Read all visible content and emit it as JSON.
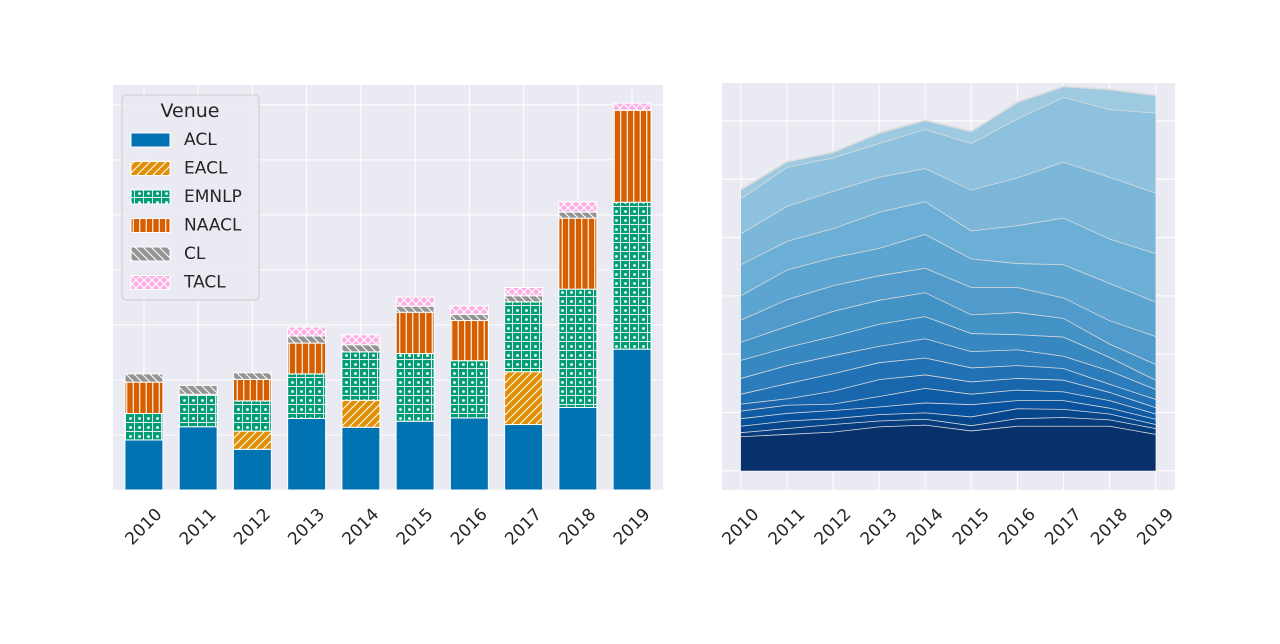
{
  "chart_data": [
    {
      "type": "bar",
      "stacked": true,
      "categories": [
        "2010",
        "2011",
        "2012",
        "2013",
        "2014",
        "2015",
        "2016",
        "2017",
        "2018",
        "2019"
      ],
      "series": [
        {
          "name": "ACL",
          "color": "#0173b2",
          "hatch": "none",
          "values": [
            91,
            115,
            74,
            130,
            114,
            125,
            131,
            119,
            150,
            256
          ]
        },
        {
          "name": "EACL",
          "color": "#de8f05",
          "hatch": "diagonal",
          "values": [
            0,
            0,
            33,
            0,
            49,
            0,
            0,
            96,
            0,
            0
          ]
        },
        {
          "name": "EMNLP",
          "color": "#029e73",
          "hatch": "dots",
          "values": [
            48,
            59,
            55,
            81,
            88,
            123,
            104,
            127,
            215,
            267
          ]
        },
        {
          "name": "NAACL",
          "color": "#d55e00",
          "hatch": "vertical",
          "values": [
            57,
            0,
            39,
            56,
            0,
            75,
            73,
            0,
            129,
            167
          ]
        },
        {
          "name": "CL",
          "color": "#949494",
          "hatch": "backslash",
          "values": [
            15,
            16,
            12,
            13,
            13,
            11,
            11,
            11,
            11,
            0
          ]
        },
        {
          "name": "TACL",
          "color": "#fbafe4",
          "hatch": "cross",
          "values": [
            0,
            0,
            0,
            16,
            18,
            17,
            16,
            15,
            19,
            13
          ]
        }
      ],
      "legend": {
        "title": "Venue",
        "position": "upper-left"
      },
      "ylim": [
        0,
        736
      ],
      "y_tick_labels_shown": false,
      "grid": true,
      "background": "#eaeaf2"
    },
    {
      "type": "area",
      "stacked": true,
      "categories": [
        "2010",
        "2011",
        "2012",
        "2013",
        "2014",
        "2015",
        "2016",
        "2017",
        "2018",
        "2019"
      ],
      "series": [
        {
          "values": [
            59,
            63,
            67,
            76,
            79,
            69,
            77,
            77,
            77,
            63
          ]
        },
        {
          "values": [
            7,
            10,
            13,
            10,
            10,
            9,
            13,
            15,
            11,
            10
          ]
        },
        {
          "values": [
            11,
            13,
            10,
            11,
            11,
            15,
            17,
            14,
            10,
            7
          ]
        },
        {
          "values": [
            13,
            13,
            14,
            13,
            17,
            21,
            14,
            15,
            10,
            9
          ]
        },
        {
          "values": [
            13,
            14,
            11,
            18,
            25,
            18,
            18,
            15,
            13,
            9
          ]
        },
        {
          "values": [
            12,
            11,
            22,
            29,
            23,
            21,
            20,
            20,
            14,
            11
          ]
        },
        {
          "values": [
            17,
            26,
            30,
            29,
            29,
            24,
            22,
            20,
            14,
            14
          ]
        },
        {
          "values": [
            27,
            31,
            31,
            28,
            33,
            28,
            27,
            21,
            23,
            17
          ]
        },
        {
          "values": [
            31,
            31,
            33,
            38,
            38,
            31,
            26,
            33,
            23,
            16
          ]
        },
        {
          "values": [
            31,
            36,
            43,
            41,
            41,
            32,
            38,
            32,
            23,
            27
          ]
        },
        {
          "values": [
            38,
            46,
            44,
            42,
            42,
            47,
            43,
            35,
            40,
            48
          ]
        },
        {
          "values": [
            42,
            51,
            48,
            47,
            58,
            49,
            41,
            57,
            64,
            59
          ]
        },
        {
          "values": [
            53,
            49,
            50,
            62,
            56,
            48,
            65,
            80,
            76,
            83
          ]
        },
        {
          "values": [
            53,
            60,
            64,
            60,
            57,
            70,
            82,
            96,
            106,
            104
          ]
        },
        {
          "values": [
            60,
            67,
            57,
            58,
            67,
            80,
            101,
            111,
            116,
            137
          ]
        },
        {
          "values": [
            15,
            9,
            9,
            17,
            15,
            20,
            28,
            18,
            34,
            30
          ]
        }
      ],
      "colormap": [
        "#08306b",
        "#08519c",
        "#2171b5",
        "#4292c6",
        "#6baed6",
        "#9ecae1"
      ],
      "edge_color": "#dcdcdc",
      "ylim": [
        -33,
        665
      ],
      "y_tick_labels_shown": false,
      "grid": true,
      "background": "#eaeaf2"
    }
  ]
}
